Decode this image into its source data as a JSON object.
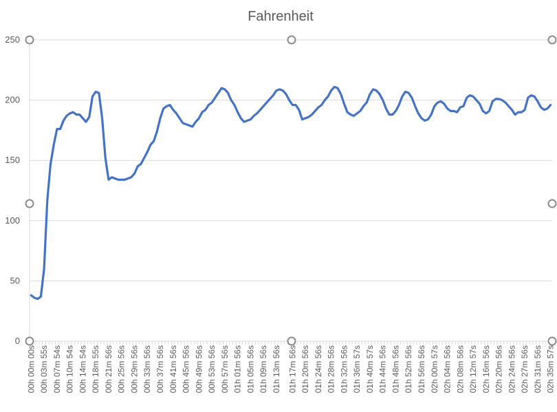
{
  "chart_data": {
    "type": "line",
    "title": "Fahrenheit",
    "xlabel": "",
    "ylabel": "",
    "ylim": [
      0,
      250
    ],
    "yticks": [
      "0",
      "50",
      "100",
      "150",
      "200",
      "250"
    ],
    "grid": true,
    "legend": "none",
    "colors": {
      "series": "#4472c4",
      "grid": "#d9d9d9",
      "text": "#595959"
    },
    "x_labels": [
      "00h 00m 00s",
      "00h 03m 55s",
      "00h 07m 54s",
      "00h 10m 54s",
      "00h 14m 54s",
      "00h 18m 55s",
      "00h 21m 56s",
      "00h 25m 56s",
      "00h 29m 56s",
      "00h 33m 56s",
      "00h 37m 56s",
      "00h 41m 56s",
      "00h 45m 56s",
      "00h 49m 56s",
      "00h 53m 56s",
      "00h 57m 56s",
      "01h 01m 56s",
      "01h 05m 56s",
      "01h 09m 56s",
      "01h 13m 56s",
      "01h 17m 56s",
      "01h 20m 56s",
      "01h 24m 56s",
      "01h 28m 56s",
      "01h 32m 56s",
      "01h 36m 57s",
      "01h 40m 57s",
      "01h 44m 56s",
      "01h 48m 56s",
      "01h 52m 56s",
      "01h 56m 56s",
      "02h 00m 57s",
      "02h 04m 56s",
      "02h 08m 56s",
      "02h 12m 57s",
      "02h 16m 56s",
      "02h 20m 56s",
      "02h 24m 56s",
      "02h 27m 56s",
      "02h 31m 56s",
      "02h 35m 57s"
    ],
    "series": [
      {
        "values": [
          38,
          36,
          35,
          37,
          60,
          117,
          147,
          163,
          176,
          176,
          183,
          187,
          189,
          190,
          188,
          188,
          185,
          182,
          186,
          203,
          207,
          206,
          185,
          152,
          134,
          136,
          135,
          134,
          134,
          134,
          135,
          136,
          139,
          145,
          147,
          152,
          157,
          163,
          166,
          174,
          185,
          193,
          195,
          196,
          192,
          189,
          185,
          181,
          180,
          179,
          178,
          182,
          185,
          190,
          192,
          196,
          198,
          202,
          206,
          210,
          209,
          206,
          200,
          196,
          190,
          185,
          182,
          183,
          184,
          187,
          189,
          192,
          195,
          198,
          201,
          204,
          208,
          209,
          208,
          205,
          200,
          196,
          196,
          192,
          184,
          185,
          186,
          188,
          191,
          194,
          196,
          200,
          203,
          208,
          211,
          210,
          205,
          197,
          190,
          188,
          187,
          189,
          191,
          195,
          198,
          205,
          209,
          208,
          205,
          200,
          193,
          188,
          188,
          191,
          196,
          203,
          207,
          206,
          202,
          195,
          189,
          185,
          183,
          184,
          188,
          195,
          198,
          199,
          197,
          193,
          191,
          191,
          190,
          194,
          195,
          202,
          204,
          203,
          200,
          197,
          191,
          189,
          191,
          199,
          201,
          201,
          200,
          198,
          195,
          192,
          188,
          190,
          190,
          192,
          202,
          204,
          203,
          199,
          194,
          192,
          193,
          196
        ]
      }
    ]
  }
}
